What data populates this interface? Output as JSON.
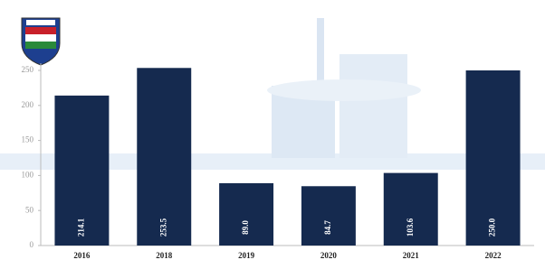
{
  "chart_data": {
    "type": "bar",
    "categories": [
      "2016",
      "2018",
      "2019",
      "2020",
      "2021",
      "2022"
    ],
    "values": [
      214.1,
      253.5,
      89,
      84.7,
      103.6,
      250
    ],
    "value_labels": [
      "214.1",
      "253.5",
      "89.0",
      "84.7",
      "103.6",
      "250.0"
    ],
    "color": "#152a4f",
    "ylim": [
      0,
      250
    ],
    "yticks": [
      0,
      50,
      100,
      150,
      200,
      250
    ]
  }
}
